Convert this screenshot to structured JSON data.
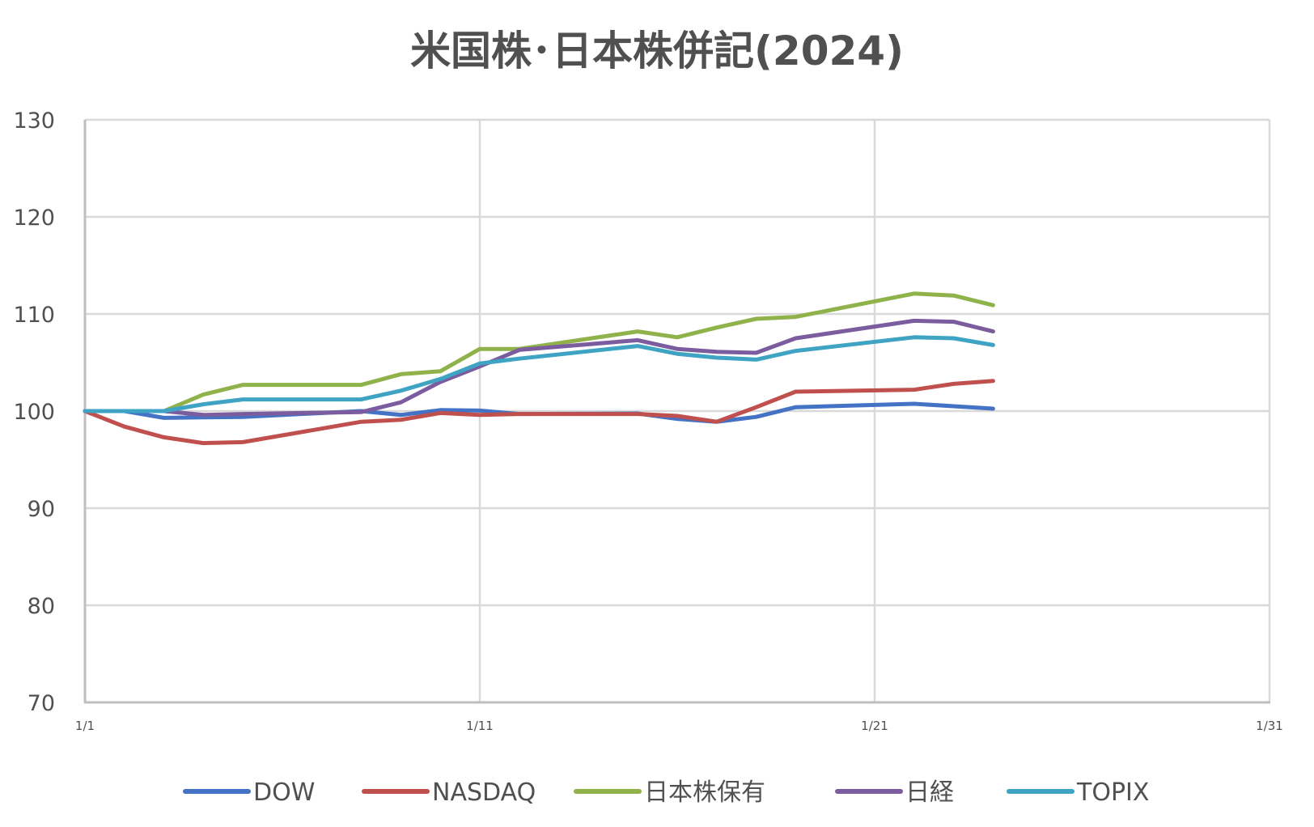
{
  "chart_data": {
    "type": "line",
    "title": "米国株･日本株併記(2024)",
    "xlabel": "",
    "ylabel": "",
    "ylim": [
      70,
      130
    ],
    "yticks": [
      "70",
      "80",
      "90",
      "100",
      "110",
      "120",
      "130"
    ],
    "xlim_days": [
      1,
      31
    ],
    "xticks": [
      {
        "label": "1/1",
        "day": 1
      },
      {
        "label": "1/11",
        "day": 11
      },
      {
        "label": "1/21",
        "day": 21
      },
      {
        "label": "1/31",
        "day": 31
      }
    ],
    "grid": true,
    "legend_position": "bottom",
    "x": [
      1,
      2,
      3,
      4,
      5,
      8,
      9,
      10,
      11,
      12,
      15,
      16,
      17,
      18,
      19,
      22,
      23,
      24
    ],
    "x_labels": [
      "1/1",
      "1/2",
      "1/3",
      "1/4",
      "1/5",
      "1/8",
      "1/9",
      "1/10",
      "1/11",
      "1/12",
      "1/15",
      "1/16",
      "1/17",
      "1/18",
      "1/19",
      "1/22",
      "1/23",
      "1/24"
    ],
    "series": [
      {
        "name": "DOW",
        "color": "#4472c4",
        "values": [
          100,
          100,
          99.3,
          99.35,
          99.4,
          100.0,
          99.6,
          100.1,
          100.05,
          99.7,
          99.75,
          99.2,
          98.9,
          99.4,
          100.4,
          100.75,
          100.5,
          100.25
        ]
      },
      {
        "name": "NASDAQ",
        "color": "#c0504d",
        "values": [
          100,
          98.4,
          97.3,
          96.7,
          96.8,
          98.9,
          99.1,
          99.8,
          99.6,
          99.7,
          99.7,
          99.5,
          98.9,
          100.4,
          102.0,
          102.2,
          102.8,
          103.1
        ]
      },
      {
        "name": "日本株保有",
        "color": "#8fb24b",
        "values": [
          100,
          100,
          100,
          101.7,
          102.7,
          102.7,
          103.8,
          104.1,
          106.4,
          106.4,
          108.2,
          107.6,
          108.6,
          109.5,
          109.7,
          112.1,
          111.9,
          110.9
        ]
      },
      {
        "name": "日経",
        "color": "#7b5c9e",
        "values": [
          100,
          100,
          100,
          99.6,
          99.7,
          99.9,
          100.9,
          103.0,
          104.6,
          106.3,
          107.3,
          106.4,
          106.1,
          106.0,
          107.5,
          109.3,
          109.2,
          108.2
        ]
      },
      {
        "name": "TOPIX",
        "color": "#3fa3c4",
        "values": [
          100,
          100,
          100,
          100.7,
          101.2,
          101.2,
          102.1,
          103.3,
          104.9,
          105.4,
          106.7,
          105.9,
          105.5,
          105.3,
          106.2,
          107.6,
          107.5,
          106.8
        ]
      }
    ],
    "colors": {
      "grid": "#d9d9d9",
      "axis": "#bfbfbf",
      "text": "#505050"
    }
  }
}
